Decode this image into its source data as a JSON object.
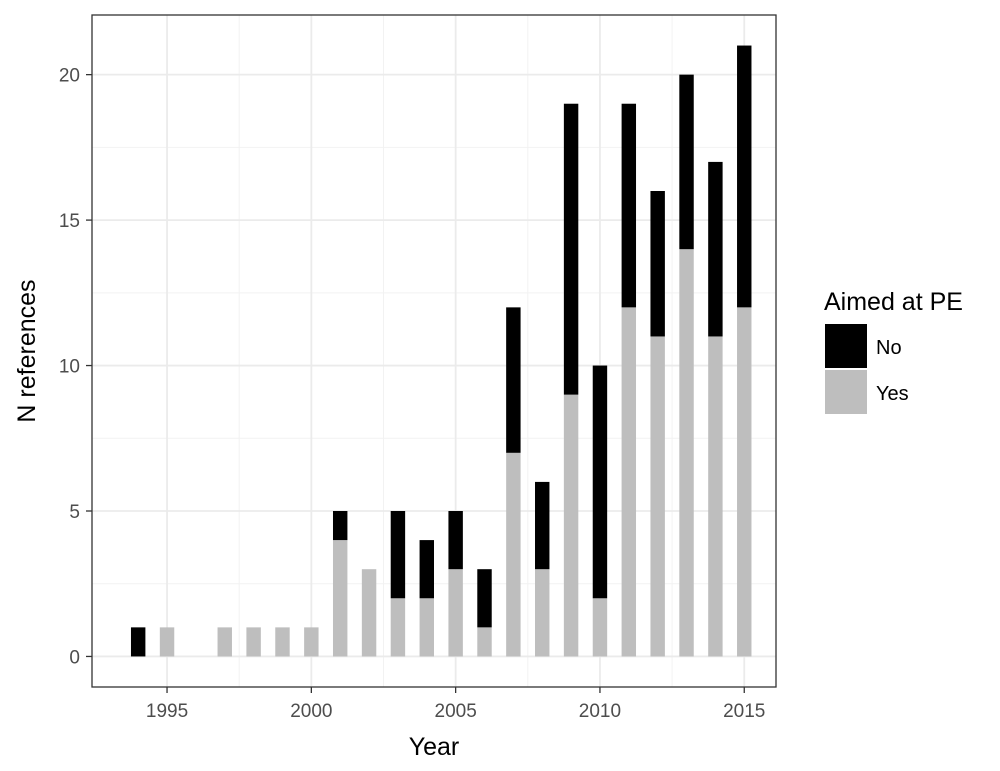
{
  "chart_data": {
    "type": "bar",
    "stacked": true,
    "xlabel": "Year",
    "ylabel": "N references",
    "xlim": [
      1992.4,
      2016.1
    ],
    "ylim": [
      -1.05,
      22.05
    ],
    "x_ticks": [
      1995,
      2000,
      2005,
      2010,
      2015
    ],
    "y_ticks": [
      0,
      5,
      10,
      15,
      20
    ],
    "grid": true,
    "legend": {
      "title": "Aimed at PE",
      "placement": "right",
      "entries": [
        {
          "label": "No",
          "color": "#000000"
        },
        {
          "label": "Yes",
          "color": "#bebebe"
        }
      ]
    },
    "x": [
      1994,
      1995,
      1997,
      1998,
      1999,
      2000,
      2001,
      2002,
      2003,
      2004,
      2005,
      2006,
      2007,
      2008,
      2009,
      2010,
      2011,
      2012,
      2013,
      2014,
      2015
    ],
    "series": [
      {
        "name": "Yes",
        "color": "#bebebe",
        "values": [
          0,
          1,
          1,
          1,
          1,
          1,
          4,
          3,
          2,
          2,
          3,
          1,
          7,
          3,
          9,
          2,
          12,
          11,
          14,
          11,
          12
        ]
      },
      {
        "name": "No",
        "color": "#000000",
        "values": [
          1,
          0,
          0,
          0,
          0,
          0,
          1,
          0,
          3,
          2,
          2,
          2,
          5,
          3,
          10,
          8,
          7,
          5,
          6,
          6,
          9
        ]
      }
    ]
  }
}
